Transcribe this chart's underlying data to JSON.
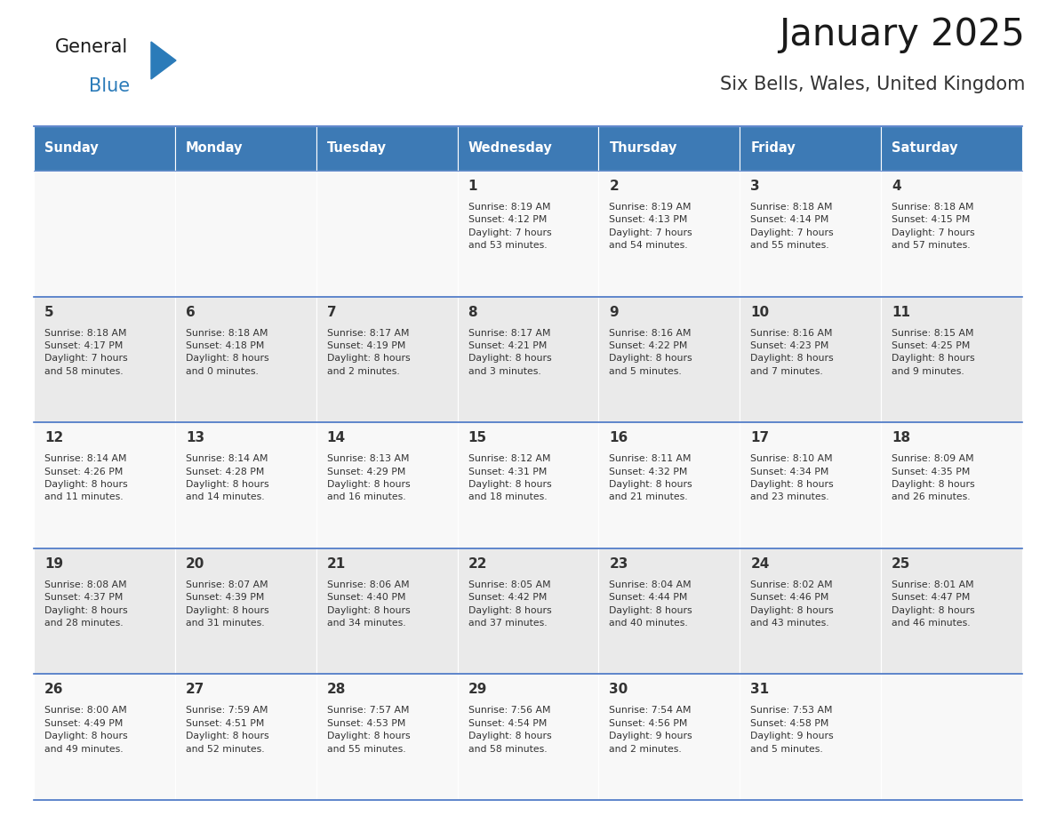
{
  "title": "January 2025",
  "subtitle": "Six Bells, Wales, United Kingdom",
  "days_of_week": [
    "Sunday",
    "Monday",
    "Tuesday",
    "Wednesday",
    "Thursday",
    "Friday",
    "Saturday"
  ],
  "header_bg": "#3D7AB5",
  "header_text": "#FFFFFF",
  "cell_bg_odd": "#EAEAEA",
  "cell_bg_even": "#F8F8F8",
  "text_color": "#333333",
  "border_color": "#4472C4",
  "weeks": [
    [
      {
        "day": null,
        "info": null
      },
      {
        "day": null,
        "info": null
      },
      {
        "day": null,
        "info": null
      },
      {
        "day": 1,
        "info": "Sunrise: 8:19 AM\nSunset: 4:12 PM\nDaylight: 7 hours\nand 53 minutes."
      },
      {
        "day": 2,
        "info": "Sunrise: 8:19 AM\nSunset: 4:13 PM\nDaylight: 7 hours\nand 54 minutes."
      },
      {
        "day": 3,
        "info": "Sunrise: 8:18 AM\nSunset: 4:14 PM\nDaylight: 7 hours\nand 55 minutes."
      },
      {
        "day": 4,
        "info": "Sunrise: 8:18 AM\nSunset: 4:15 PM\nDaylight: 7 hours\nand 57 minutes."
      }
    ],
    [
      {
        "day": 5,
        "info": "Sunrise: 8:18 AM\nSunset: 4:17 PM\nDaylight: 7 hours\nand 58 minutes."
      },
      {
        "day": 6,
        "info": "Sunrise: 8:18 AM\nSunset: 4:18 PM\nDaylight: 8 hours\nand 0 minutes."
      },
      {
        "day": 7,
        "info": "Sunrise: 8:17 AM\nSunset: 4:19 PM\nDaylight: 8 hours\nand 2 minutes."
      },
      {
        "day": 8,
        "info": "Sunrise: 8:17 AM\nSunset: 4:21 PM\nDaylight: 8 hours\nand 3 minutes."
      },
      {
        "day": 9,
        "info": "Sunrise: 8:16 AM\nSunset: 4:22 PM\nDaylight: 8 hours\nand 5 minutes."
      },
      {
        "day": 10,
        "info": "Sunrise: 8:16 AM\nSunset: 4:23 PM\nDaylight: 8 hours\nand 7 minutes."
      },
      {
        "day": 11,
        "info": "Sunrise: 8:15 AM\nSunset: 4:25 PM\nDaylight: 8 hours\nand 9 minutes."
      }
    ],
    [
      {
        "day": 12,
        "info": "Sunrise: 8:14 AM\nSunset: 4:26 PM\nDaylight: 8 hours\nand 11 minutes."
      },
      {
        "day": 13,
        "info": "Sunrise: 8:14 AM\nSunset: 4:28 PM\nDaylight: 8 hours\nand 14 minutes."
      },
      {
        "day": 14,
        "info": "Sunrise: 8:13 AM\nSunset: 4:29 PM\nDaylight: 8 hours\nand 16 minutes."
      },
      {
        "day": 15,
        "info": "Sunrise: 8:12 AM\nSunset: 4:31 PM\nDaylight: 8 hours\nand 18 minutes."
      },
      {
        "day": 16,
        "info": "Sunrise: 8:11 AM\nSunset: 4:32 PM\nDaylight: 8 hours\nand 21 minutes."
      },
      {
        "day": 17,
        "info": "Sunrise: 8:10 AM\nSunset: 4:34 PM\nDaylight: 8 hours\nand 23 minutes."
      },
      {
        "day": 18,
        "info": "Sunrise: 8:09 AM\nSunset: 4:35 PM\nDaylight: 8 hours\nand 26 minutes."
      }
    ],
    [
      {
        "day": 19,
        "info": "Sunrise: 8:08 AM\nSunset: 4:37 PM\nDaylight: 8 hours\nand 28 minutes."
      },
      {
        "day": 20,
        "info": "Sunrise: 8:07 AM\nSunset: 4:39 PM\nDaylight: 8 hours\nand 31 minutes."
      },
      {
        "day": 21,
        "info": "Sunrise: 8:06 AM\nSunset: 4:40 PM\nDaylight: 8 hours\nand 34 minutes."
      },
      {
        "day": 22,
        "info": "Sunrise: 8:05 AM\nSunset: 4:42 PM\nDaylight: 8 hours\nand 37 minutes."
      },
      {
        "day": 23,
        "info": "Sunrise: 8:04 AM\nSunset: 4:44 PM\nDaylight: 8 hours\nand 40 minutes."
      },
      {
        "day": 24,
        "info": "Sunrise: 8:02 AM\nSunset: 4:46 PM\nDaylight: 8 hours\nand 43 minutes."
      },
      {
        "day": 25,
        "info": "Sunrise: 8:01 AM\nSunset: 4:47 PM\nDaylight: 8 hours\nand 46 minutes."
      }
    ],
    [
      {
        "day": 26,
        "info": "Sunrise: 8:00 AM\nSunset: 4:49 PM\nDaylight: 8 hours\nand 49 minutes."
      },
      {
        "day": 27,
        "info": "Sunrise: 7:59 AM\nSunset: 4:51 PM\nDaylight: 8 hours\nand 52 minutes."
      },
      {
        "day": 28,
        "info": "Sunrise: 7:57 AM\nSunset: 4:53 PM\nDaylight: 8 hours\nand 55 minutes."
      },
      {
        "day": 29,
        "info": "Sunrise: 7:56 AM\nSunset: 4:54 PM\nDaylight: 8 hours\nand 58 minutes."
      },
      {
        "day": 30,
        "info": "Sunrise: 7:54 AM\nSunset: 4:56 PM\nDaylight: 9 hours\nand 2 minutes."
      },
      {
        "day": 31,
        "info": "Sunrise: 7:53 AM\nSunset: 4:58 PM\nDaylight: 9 hours\nand 5 minutes."
      },
      {
        "day": null,
        "info": null
      }
    ]
  ],
  "logo_general_color": "#1a1a1a",
  "logo_blue_color": "#2B7BB9",
  "logo_triangle_color": "#2B7BB9"
}
